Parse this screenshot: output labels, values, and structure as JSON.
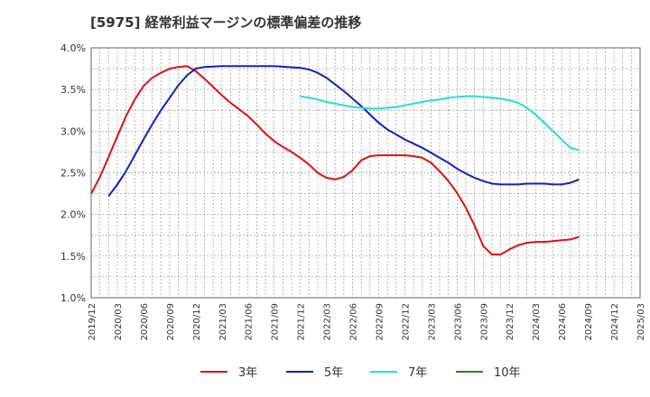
{
  "chart_data": {
    "type": "line",
    "title": "[5975]  経常利益マージンの標準偏差の推移",
    "xlabel": "",
    "ylabel": "",
    "y_ticks": [
      "1.0%",
      "1.5%",
      "2.0%",
      "2.5%",
      "3.0%",
      "3.5%",
      "4.0%"
    ],
    "ylim": [
      1.0,
      4.0
    ],
    "x_ticks": [
      "2019/12",
      "2020/03",
      "2020/06",
      "2020/09",
      "2020/12",
      "2021/03",
      "2021/06",
      "2021/09",
      "2021/12",
      "2022/03",
      "2022/06",
      "2022/09",
      "2022/12",
      "2023/03",
      "2023/06",
      "2023/09",
      "2023/12",
      "2024/03",
      "2024/06",
      "2024/09",
      "2024/12",
      "2025/03"
    ],
    "grid": true,
    "legend_position": "bottom",
    "series": [
      {
        "name": "3年",
        "color": "#dd1111",
        "points": [
          [
            0,
            2.25
          ],
          [
            1,
            2.45
          ],
          [
            2,
            2.69
          ],
          [
            3,
            2.94
          ],
          [
            4,
            3.18
          ],
          [
            5,
            3.38
          ],
          [
            6,
            3.54
          ],
          [
            7,
            3.64
          ],
          [
            8,
            3.7
          ],
          [
            9,
            3.75
          ],
          [
            10,
            3.77
          ],
          [
            11,
            3.78
          ],
          [
            12,
            3.72
          ],
          [
            13,
            3.63
          ],
          [
            14,
            3.53
          ],
          [
            15,
            3.43
          ],
          [
            16,
            3.34
          ],
          [
            17,
            3.26
          ],
          [
            18,
            3.18
          ],
          [
            19,
            3.08
          ],
          [
            20,
            2.97
          ],
          [
            21,
            2.88
          ],
          [
            22,
            2.81
          ],
          [
            23,
            2.75
          ],
          [
            24,
            2.68
          ],
          [
            25,
            2.6
          ],
          [
            26,
            2.5
          ],
          [
            27,
            2.44
          ],
          [
            28,
            2.42
          ],
          [
            29,
            2.45
          ],
          [
            30,
            2.53
          ],
          [
            31,
            2.65
          ],
          [
            32,
            2.7
          ],
          [
            33,
            2.71
          ],
          [
            34,
            2.71
          ],
          [
            35,
            2.71
          ],
          [
            36,
            2.71
          ],
          [
            37,
            2.7
          ],
          [
            38,
            2.68
          ],
          [
            39,
            2.62
          ],
          [
            40,
            2.52
          ],
          [
            41,
            2.4
          ],
          [
            42,
            2.26
          ],
          [
            43,
            2.08
          ],
          [
            44,
            1.87
          ],
          [
            45,
            1.62
          ],
          [
            46,
            1.52
          ],
          [
            47,
            1.52
          ],
          [
            48,
            1.58
          ],
          [
            49,
            1.63
          ],
          [
            50,
            1.66
          ],
          [
            51,
            1.67
          ],
          [
            52,
            1.67
          ],
          [
            53,
            1.68
          ],
          [
            54,
            1.69
          ],
          [
            55,
            1.7
          ],
          [
            56,
            1.73
          ]
        ]
      },
      {
        "name": "5年",
        "color": "#1122bb",
        "points": [
          [
            2,
            2.22
          ],
          [
            3,
            2.36
          ],
          [
            4,
            2.52
          ],
          [
            5,
            2.71
          ],
          [
            6,
            2.9
          ],
          [
            7,
            3.08
          ],
          [
            8,
            3.25
          ],
          [
            9,
            3.4
          ],
          [
            10,
            3.55
          ],
          [
            11,
            3.67
          ],
          [
            12,
            3.75
          ],
          [
            13,
            3.77
          ],
          [
            15,
            3.78
          ],
          [
            18,
            3.78
          ],
          [
            21,
            3.78
          ],
          [
            24,
            3.76
          ],
          [
            25,
            3.74
          ],
          [
            26,
            3.7
          ],
          [
            27,
            3.64
          ],
          [
            28,
            3.56
          ],
          [
            29,
            3.48
          ],
          [
            30,
            3.39
          ],
          [
            31,
            3.3
          ],
          [
            32,
            3.2
          ],
          [
            33,
            3.1
          ],
          [
            34,
            3.02
          ],
          [
            35,
            2.96
          ],
          [
            36,
            2.9
          ],
          [
            37,
            2.85
          ],
          [
            38,
            2.8
          ],
          [
            39,
            2.74
          ],
          [
            40,
            2.68
          ],
          [
            41,
            2.62
          ],
          [
            42,
            2.55
          ],
          [
            43,
            2.49
          ],
          [
            44,
            2.44
          ],
          [
            45,
            2.4
          ],
          [
            46,
            2.37
          ],
          [
            47,
            2.36
          ],
          [
            48,
            2.36
          ],
          [
            49,
            2.36
          ],
          [
            50,
            2.37
          ],
          [
            51,
            2.37
          ],
          [
            52,
            2.37
          ],
          [
            53,
            2.36
          ],
          [
            54,
            2.36
          ],
          [
            55,
            2.38
          ],
          [
            56,
            2.42
          ]
        ]
      },
      {
        "name": "7年",
        "color": "#22dddd",
        "points": [
          [
            24,
            3.42
          ],
          [
            25,
            3.4
          ],
          [
            26,
            3.38
          ],
          [
            27,
            3.35
          ],
          [
            28,
            3.33
          ],
          [
            29,
            3.31
          ],
          [
            30,
            3.29
          ],
          [
            31,
            3.28
          ],
          [
            32,
            3.27
          ],
          [
            33,
            3.27
          ],
          [
            34,
            3.28
          ],
          [
            35,
            3.29
          ],
          [
            36,
            3.31
          ],
          [
            37,
            3.33
          ],
          [
            38,
            3.35
          ],
          [
            39,
            3.37
          ],
          [
            40,
            3.38
          ],
          [
            41,
            3.4
          ],
          [
            42,
            3.41
          ],
          [
            43,
            3.42
          ],
          [
            44,
            3.42
          ],
          [
            45,
            3.41
          ],
          [
            46,
            3.4
          ],
          [
            47,
            3.39
          ],
          [
            48,
            3.37
          ],
          [
            49,
            3.34
          ],
          [
            50,
            3.28
          ],
          [
            51,
            3.2
          ],
          [
            52,
            3.1
          ],
          [
            53,
            3.0
          ],
          [
            54,
            2.9
          ],
          [
            55,
            2.8
          ],
          [
            56,
            2.77
          ]
        ]
      },
      {
        "name": "10年",
        "color": "#228822",
        "points": []
      }
    ]
  }
}
